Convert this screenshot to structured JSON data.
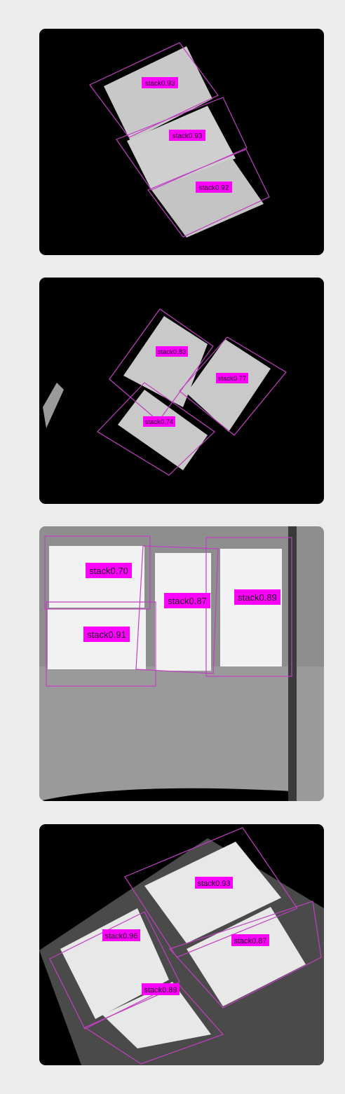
{
  "colors": {
    "page_bg": "#ececec",
    "panel_bg": "#000000",
    "box_stroke": "#c040c0",
    "label_bg": "#ff00ff",
    "label_text": "#1a001a",
    "stack_fill": "#d6d6d6",
    "panel3_bg": "#8c8c8c"
  },
  "panels": [
    {
      "name": "panel-1",
      "detections": [
        {
          "label": "stack0.93"
        },
        {
          "label": "stack0.93"
        },
        {
          "label": "stack0.92"
        }
      ]
    },
    {
      "name": "panel-2",
      "detections": [
        {
          "label": "stack0.83"
        },
        {
          "label": "stack0.77"
        },
        {
          "label": "stack0.74"
        }
      ]
    },
    {
      "name": "panel-3",
      "detections": [
        {
          "label": "stack0.70"
        },
        {
          "label": "stack0.87"
        },
        {
          "label": "stack0.89"
        },
        {
          "label": "stack0.91"
        }
      ]
    },
    {
      "name": "panel-4",
      "detections": [
        {
          "label": "stack0.93"
        },
        {
          "label": "stack0.96"
        },
        {
          "label": "stack0.87"
        },
        {
          "label": "stack0.89"
        }
      ]
    }
  ]
}
